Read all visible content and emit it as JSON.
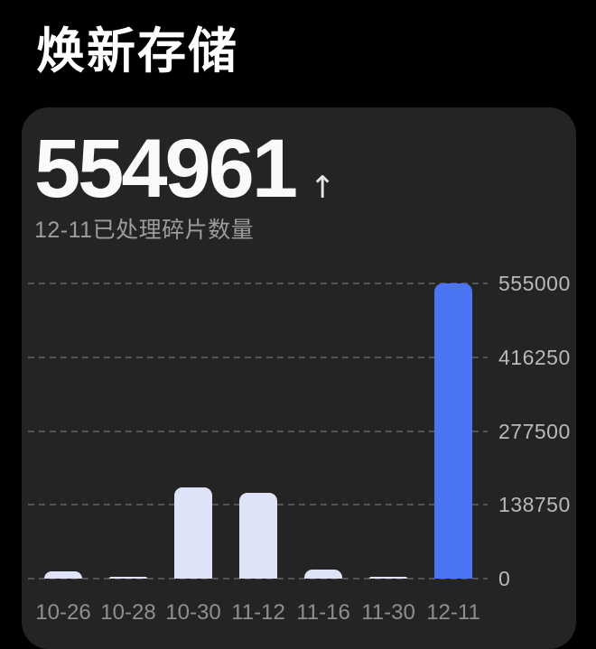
{
  "page_title": "焕新存储",
  "card": {
    "counter_value": "554961",
    "counter_arrow": "↑",
    "counter_caption": "12-11已处理碎片数量"
  },
  "colors": {
    "page_bg": "#000000",
    "card_bg": "#242424",
    "title_text": "#ffffff",
    "counter_text": "#fafafa",
    "caption_text": "#9c9c9e",
    "gridline": "#545454",
    "y_label": "#b9b9bd",
    "x_label": "#8e8e93",
    "bar_default": "#dfe3f7",
    "bar_highlight": "#4b75f2"
  },
  "chart_data": {
    "type": "bar",
    "title": "12-11已处理碎片数量",
    "categories": [
      "10-26",
      "10-28",
      "10-30",
      "11-12",
      "11-16",
      "11-30",
      "12-11"
    ],
    "values": [
      14000,
      4000,
      171000,
      162000,
      17000,
      2500,
      554961
    ],
    "highlight_index": 6,
    "highlight_category": "12-11",
    "y_ticks": [
      555000,
      416250,
      277500,
      138750,
      0
    ],
    "ylim": [
      0,
      555000
    ],
    "xlabel": "",
    "ylabel": "",
    "grid": "dashed-horizontal",
    "y_axis_position": "right",
    "legend": "none"
  }
}
